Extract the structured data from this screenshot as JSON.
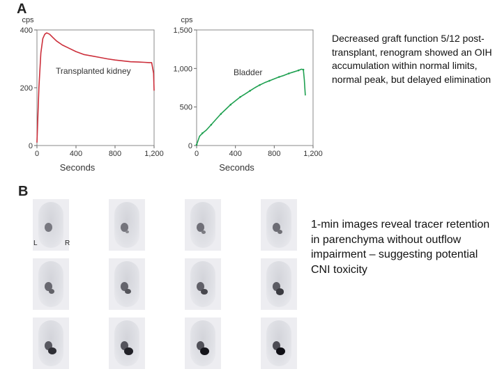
{
  "panel_a_label": "A",
  "panel_b_label": "B",
  "chart_data": [
    {
      "type": "line",
      "ylabel": "cps",
      "xlabel": "Seconds",
      "series_label": "Transplanted kidney",
      "color": "#cc2e3a",
      "xlim": [
        0,
        1200
      ],
      "ylim": [
        0,
        400
      ],
      "x_ticks": [
        "0",
        "400",
        "800",
        "1,200"
      ],
      "y_ticks": [
        "0",
        "200",
        "400"
      ],
      "x": [
        0,
        20,
        40,
        60,
        80,
        100,
        130,
        160,
        200,
        260,
        320,
        400,
        480,
        560,
        640,
        720,
        800,
        880,
        960,
        1040,
        1100,
        1150,
        1175,
        1195,
        1200
      ],
      "y": [
        10,
        200,
        320,
        370,
        385,
        390,
        385,
        375,
        362,
        348,
        338,
        325,
        315,
        310,
        305,
        300,
        296,
        293,
        290,
        289,
        288,
        287,
        287,
        250,
        190
      ]
    },
    {
      "type": "line",
      "ylabel": "cps",
      "xlabel": "Seconds",
      "series_label": "Bladder",
      "color": "#1ea050",
      "xlim": [
        0,
        1200
      ],
      "ylim": [
        0,
        1500
      ],
      "x_ticks": [
        "0",
        "400",
        "800",
        "1,200"
      ],
      "y_ticks": [
        "0",
        "500",
        "1,000",
        "1,500"
      ],
      "x": [
        0,
        30,
        60,
        100,
        150,
        200,
        250,
        300,
        350,
        400,
        450,
        500,
        550,
        600,
        650,
        700,
        750,
        800,
        850,
        900,
        950,
        1000,
        1050,
        1080,
        1100,
        1110,
        1120
      ],
      "y": [
        10,
        120,
        160,
        200,
        270,
        340,
        410,
        470,
        530,
        580,
        630,
        670,
        710,
        750,
        785,
        815,
        840,
        865,
        890,
        910,
        935,
        955,
        975,
        990,
        985,
        850,
        650
      ]
    }
  ],
  "caption_top": "Decreased graft function 5/12 post-transplant, renogram showed an OIH accumulation within normal limits, normal peak, but delayed elimination",
  "caption_bottom": "1-min images reveal tracer retention in parenchyma without outflow impairment – suggesting potential CNI toxicity",
  "orientation_left": "L",
  "orientation_right": "R"
}
